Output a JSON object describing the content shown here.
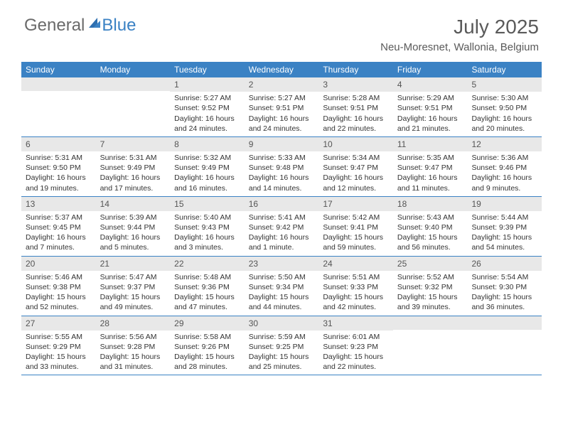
{
  "brand": {
    "part1": "General",
    "part2": "Blue"
  },
  "title": "July 2025",
  "location": "Neu-Moresnet, Wallonia, Belgium",
  "header_bg": "#3b82c4",
  "weekdays": [
    "Sunday",
    "Monday",
    "Tuesday",
    "Wednesday",
    "Thursday",
    "Friday",
    "Saturday"
  ],
  "weeks": [
    [
      {
        "n": "",
        "sr": "",
        "ss": "",
        "d1": "",
        "d2": ""
      },
      {
        "n": "",
        "sr": "",
        "ss": "",
        "d1": "",
        "d2": ""
      },
      {
        "n": "1",
        "sr": "Sunrise: 5:27 AM",
        "ss": "Sunset: 9:52 PM",
        "d1": "Daylight: 16 hours",
        "d2": "and 24 minutes."
      },
      {
        "n": "2",
        "sr": "Sunrise: 5:27 AM",
        "ss": "Sunset: 9:51 PM",
        "d1": "Daylight: 16 hours",
        "d2": "and 24 minutes."
      },
      {
        "n": "3",
        "sr": "Sunrise: 5:28 AM",
        "ss": "Sunset: 9:51 PM",
        "d1": "Daylight: 16 hours",
        "d2": "and 22 minutes."
      },
      {
        "n": "4",
        "sr": "Sunrise: 5:29 AM",
        "ss": "Sunset: 9:51 PM",
        "d1": "Daylight: 16 hours",
        "d2": "and 21 minutes."
      },
      {
        "n": "5",
        "sr": "Sunrise: 5:30 AM",
        "ss": "Sunset: 9:50 PM",
        "d1": "Daylight: 16 hours",
        "d2": "and 20 minutes."
      }
    ],
    [
      {
        "n": "6",
        "sr": "Sunrise: 5:31 AM",
        "ss": "Sunset: 9:50 PM",
        "d1": "Daylight: 16 hours",
        "d2": "and 19 minutes."
      },
      {
        "n": "7",
        "sr": "Sunrise: 5:31 AM",
        "ss": "Sunset: 9:49 PM",
        "d1": "Daylight: 16 hours",
        "d2": "and 17 minutes."
      },
      {
        "n": "8",
        "sr": "Sunrise: 5:32 AM",
        "ss": "Sunset: 9:49 PM",
        "d1": "Daylight: 16 hours",
        "d2": "and 16 minutes."
      },
      {
        "n": "9",
        "sr": "Sunrise: 5:33 AM",
        "ss": "Sunset: 9:48 PM",
        "d1": "Daylight: 16 hours",
        "d2": "and 14 minutes."
      },
      {
        "n": "10",
        "sr": "Sunrise: 5:34 AM",
        "ss": "Sunset: 9:47 PM",
        "d1": "Daylight: 16 hours",
        "d2": "and 12 minutes."
      },
      {
        "n": "11",
        "sr": "Sunrise: 5:35 AM",
        "ss": "Sunset: 9:47 PM",
        "d1": "Daylight: 16 hours",
        "d2": "and 11 minutes."
      },
      {
        "n": "12",
        "sr": "Sunrise: 5:36 AM",
        "ss": "Sunset: 9:46 PM",
        "d1": "Daylight: 16 hours",
        "d2": "and 9 minutes."
      }
    ],
    [
      {
        "n": "13",
        "sr": "Sunrise: 5:37 AM",
        "ss": "Sunset: 9:45 PM",
        "d1": "Daylight: 16 hours",
        "d2": "and 7 minutes."
      },
      {
        "n": "14",
        "sr": "Sunrise: 5:39 AM",
        "ss": "Sunset: 9:44 PM",
        "d1": "Daylight: 16 hours",
        "d2": "and 5 minutes."
      },
      {
        "n": "15",
        "sr": "Sunrise: 5:40 AM",
        "ss": "Sunset: 9:43 PM",
        "d1": "Daylight: 16 hours",
        "d2": "and 3 minutes."
      },
      {
        "n": "16",
        "sr": "Sunrise: 5:41 AM",
        "ss": "Sunset: 9:42 PM",
        "d1": "Daylight: 16 hours",
        "d2": "and 1 minute."
      },
      {
        "n": "17",
        "sr": "Sunrise: 5:42 AM",
        "ss": "Sunset: 9:41 PM",
        "d1": "Daylight: 15 hours",
        "d2": "and 59 minutes."
      },
      {
        "n": "18",
        "sr": "Sunrise: 5:43 AM",
        "ss": "Sunset: 9:40 PM",
        "d1": "Daylight: 15 hours",
        "d2": "and 56 minutes."
      },
      {
        "n": "19",
        "sr": "Sunrise: 5:44 AM",
        "ss": "Sunset: 9:39 PM",
        "d1": "Daylight: 15 hours",
        "d2": "and 54 minutes."
      }
    ],
    [
      {
        "n": "20",
        "sr": "Sunrise: 5:46 AM",
        "ss": "Sunset: 9:38 PM",
        "d1": "Daylight: 15 hours",
        "d2": "and 52 minutes."
      },
      {
        "n": "21",
        "sr": "Sunrise: 5:47 AM",
        "ss": "Sunset: 9:37 PM",
        "d1": "Daylight: 15 hours",
        "d2": "and 49 minutes."
      },
      {
        "n": "22",
        "sr": "Sunrise: 5:48 AM",
        "ss": "Sunset: 9:36 PM",
        "d1": "Daylight: 15 hours",
        "d2": "and 47 minutes."
      },
      {
        "n": "23",
        "sr": "Sunrise: 5:50 AM",
        "ss": "Sunset: 9:34 PM",
        "d1": "Daylight: 15 hours",
        "d2": "and 44 minutes."
      },
      {
        "n": "24",
        "sr": "Sunrise: 5:51 AM",
        "ss": "Sunset: 9:33 PM",
        "d1": "Daylight: 15 hours",
        "d2": "and 42 minutes."
      },
      {
        "n": "25",
        "sr": "Sunrise: 5:52 AM",
        "ss": "Sunset: 9:32 PM",
        "d1": "Daylight: 15 hours",
        "d2": "and 39 minutes."
      },
      {
        "n": "26",
        "sr": "Sunrise: 5:54 AM",
        "ss": "Sunset: 9:30 PM",
        "d1": "Daylight: 15 hours",
        "d2": "and 36 minutes."
      }
    ],
    [
      {
        "n": "27",
        "sr": "Sunrise: 5:55 AM",
        "ss": "Sunset: 9:29 PM",
        "d1": "Daylight: 15 hours",
        "d2": "and 33 minutes."
      },
      {
        "n": "28",
        "sr": "Sunrise: 5:56 AM",
        "ss": "Sunset: 9:28 PM",
        "d1": "Daylight: 15 hours",
        "d2": "and 31 minutes."
      },
      {
        "n": "29",
        "sr": "Sunrise: 5:58 AM",
        "ss": "Sunset: 9:26 PM",
        "d1": "Daylight: 15 hours",
        "d2": "and 28 minutes."
      },
      {
        "n": "30",
        "sr": "Sunrise: 5:59 AM",
        "ss": "Sunset: 9:25 PM",
        "d1": "Daylight: 15 hours",
        "d2": "and 25 minutes."
      },
      {
        "n": "31",
        "sr": "Sunrise: 6:01 AM",
        "ss": "Sunset: 9:23 PM",
        "d1": "Daylight: 15 hours",
        "d2": "and 22 minutes."
      },
      {
        "n": "",
        "sr": "",
        "ss": "",
        "d1": "",
        "d2": ""
      },
      {
        "n": "",
        "sr": "",
        "ss": "",
        "d1": "",
        "d2": ""
      }
    ]
  ]
}
